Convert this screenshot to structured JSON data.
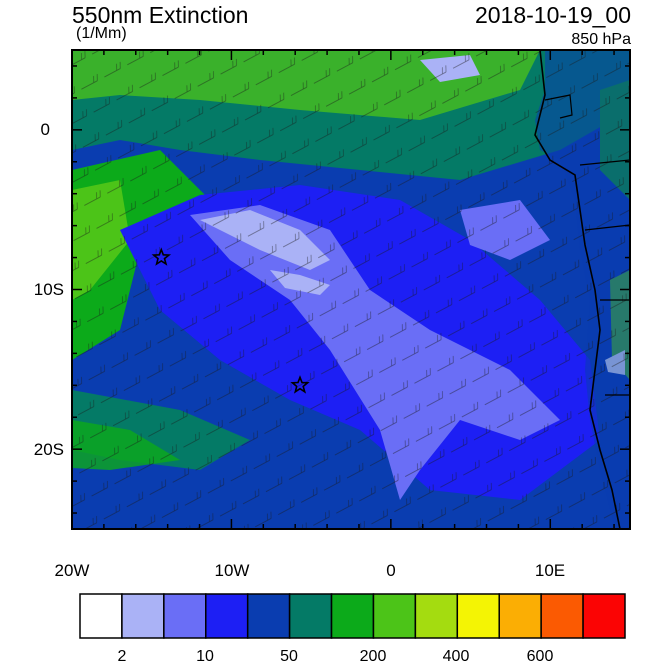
{
  "header": {
    "title": "550nm Extinction",
    "units": "(1/Mm)",
    "datetime": "2018-10-19_00",
    "level": "850 hPa"
  },
  "map": {
    "region": "Southeast Atlantic / southwest Africa coast",
    "lon_range": [
      -20,
      15
    ],
    "lat_range": [
      -25,
      5
    ],
    "x_ticks": [
      "20W",
      "10W",
      "0",
      "10E"
    ],
    "y_ticks": [
      "0",
      "10S",
      "20S"
    ],
    "markers": [
      {
        "type": "star",
        "lon": -14.4,
        "lat": -8.0
      },
      {
        "type": "star",
        "lon": -5.7,
        "lat": -16.0
      }
    ],
    "overlay": "wind barbs",
    "coastline_color": "#000000"
  },
  "colorbar": {
    "colors": [
      "#ffffff",
      "#aab2f6",
      "#6a6ef6",
      "#1d1ff4",
      "#0a3db0",
      "#047a66",
      "#0caa1a",
      "#4cc418",
      "#a4dc10",
      "#f4f404",
      "#fbae04",
      "#fb5a02",
      "#fb0404"
    ],
    "labels": [
      "2",
      "10",
      "50",
      "200",
      "400",
      "600"
    ]
  }
}
